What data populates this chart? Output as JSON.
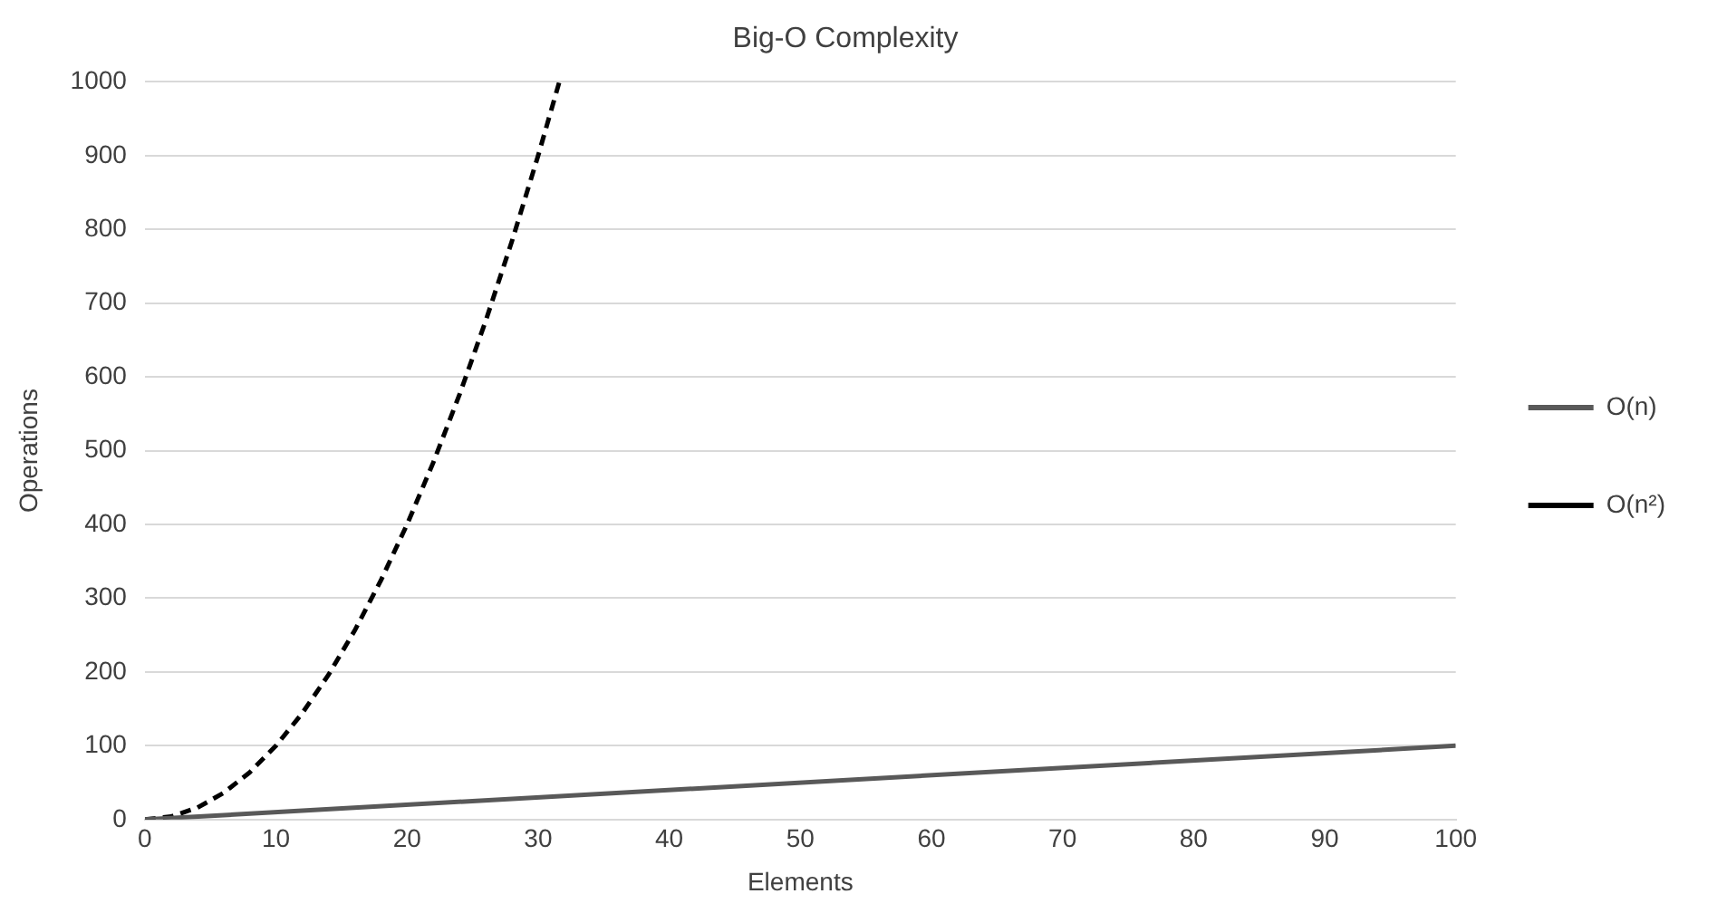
{
  "chart_data": {
    "type": "line",
    "title": "Big-O Complexity",
    "xlabel": "Elements",
    "ylabel": "Operations",
    "xlim": [
      0,
      100
    ],
    "xticks": [
      0,
      10,
      20,
      30,
      40,
      50,
      60,
      70,
      80,
      90,
      100
    ],
    "ylim": [
      0,
      1000
    ],
    "yticks": [
      0,
      100,
      200,
      300,
      400,
      500,
      600,
      700,
      800,
      900,
      1000
    ],
    "grid": "y",
    "legend": "right",
    "marker": "none",
    "series": [
      {
        "name": "O(n)",
        "color": "#595959",
        "line_style": "solid",
        "x": [
          0,
          100
        ],
        "values": [
          0,
          100
        ]
      },
      {
        "name": "O(n²)",
        "color": "#000000",
        "line_style": "dashed",
        "x": [
          0,
          2,
          4,
          6,
          8,
          10,
          12,
          14,
          16,
          18,
          20,
          22,
          24,
          26,
          28,
          30,
          31.6
        ],
        "values": [
          0,
          4,
          16,
          36,
          64,
          100,
          144,
          196,
          256,
          324,
          400,
          484,
          576,
          676,
          784,
          900,
          999
        ]
      }
    ]
  }
}
